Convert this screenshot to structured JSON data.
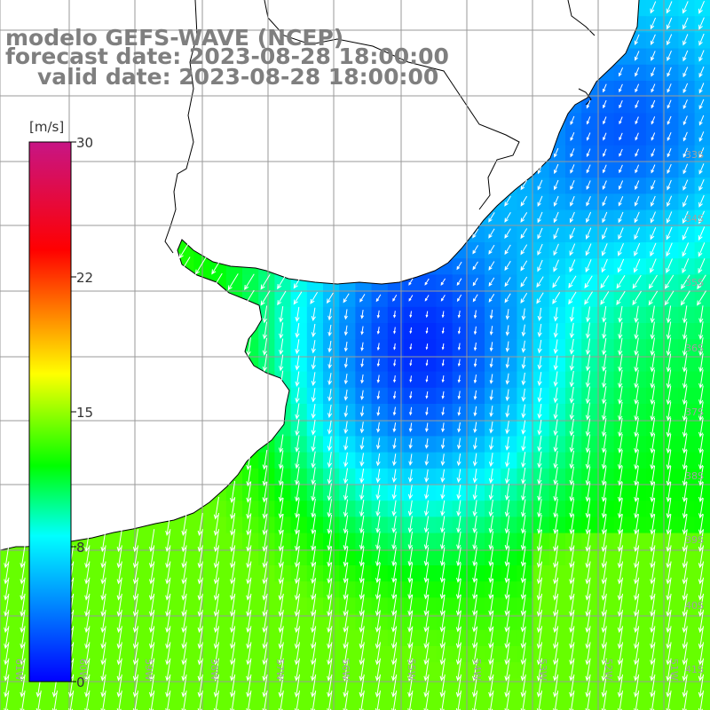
{
  "title": {
    "line1": "modelo GEFS-WAVE (NCEP)",
    "line2": "forecast date: 2023-08-28 18:00:00",
    "line3": "valid date: 2023-08-28 18:00:00"
  },
  "colorbar": {
    "unit": "[m/s]",
    "ticks": [
      "30",
      "22",
      "15",
      "8",
      "0"
    ],
    "range": [
      0,
      30
    ],
    "colors": [
      "#0000ff",
      "#00ffff",
      "#00ff00",
      "#ffff00",
      "#ff0000",
      "#c71585"
    ]
  },
  "map": {
    "lat_labels": [
      "33S",
      "34S",
      "35S",
      "36S",
      "37S",
      "38S",
      "39S",
      "40S",
      "41S"
    ],
    "lon_labels": [
      "61W",
      "60W",
      "59W",
      "58W",
      "57W",
      "56W",
      "55W",
      "54W",
      "53W",
      "52W",
      "51W"
    ],
    "land_color": "#ffffff",
    "grid_color": "#999999",
    "arrow_color": "#ffffff"
  }
}
